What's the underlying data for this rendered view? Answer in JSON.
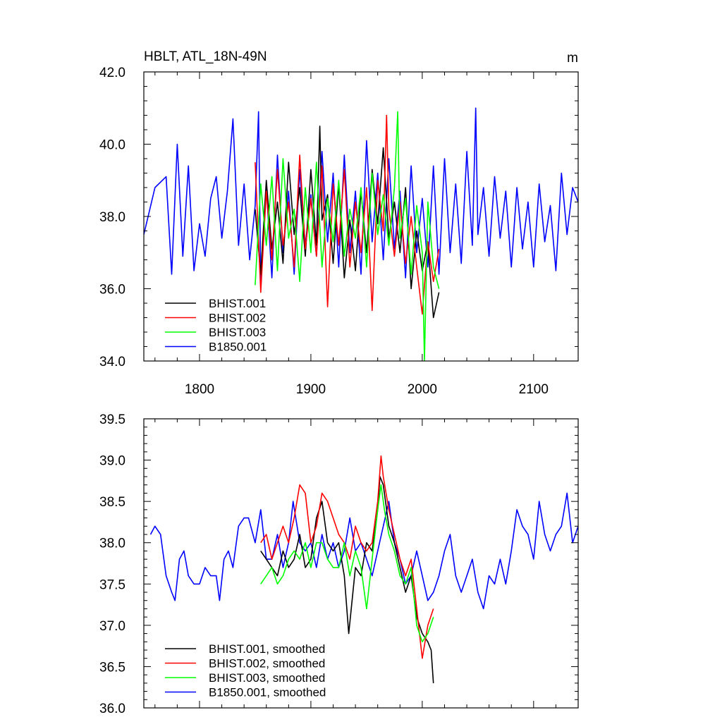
{
  "title_left": "HBLT, ATL_18N-49N",
  "title_right": "m",
  "colors": {
    "BHIST.001": "#000000",
    "BHIST.002": "#ff0000",
    "BHIST.003": "#00ff00",
    "B1850.001": "#0000ff"
  },
  "chart_data": [
    {
      "type": "line",
      "title": "HBLT, ATL_18N-49N",
      "units_label": "m",
      "xlim": [
        1750,
        2140
      ],
      "ylim": [
        34.0,
        42.0
      ],
      "x_ticks": [
        1800,
        1900,
        2000,
        2100
      ],
      "x_tick_labels": [
        "1800",
        "1900",
        "2000",
        "2100"
      ],
      "y_ticks": [
        34.0,
        36.0,
        38.0,
        40.0,
        42.0
      ],
      "y_tick_labels": [
        "34.0",
        "36.0",
        "38.0",
        "40.0",
        "42.0"
      ],
      "grid": false,
      "legend_position": "bottom-left",
      "legend": [
        "BHIST.001",
        "BHIST.002",
        "BHIST.003",
        "B1850.001"
      ],
      "series": [
        {
          "name": "B1850.001",
          "color": "#0000ff",
          "x": [
            1750,
            1760,
            1770,
            1775,
            1780,
            1785,
            1790,
            1795,
            1800,
            1805,
            1810,
            1815,
            1820,
            1825,
            1830,
            1835,
            1840,
            1845,
            1850,
            1853,
            1855,
            1860,
            1865,
            1870,
            1875,
            1880,
            1885,
            1890,
            1895,
            1900,
            1905,
            1910,
            1915,
            1920,
            1925,
            1930,
            1935,
            1940,
            1945,
            1950,
            1955,
            1960,
            1965,
            1970,
            1975,
            1980,
            1985,
            1990,
            1995,
            2000,
            2005,
            2010,
            2015,
            2020,
            2025,
            2030,
            2035,
            2040,
            2045,
            2048,
            2050,
            2055,
            2060,
            2065,
            2070,
            2075,
            2080,
            2085,
            2090,
            2095,
            2100,
            2105,
            2110,
            2115,
            2120,
            2125,
            2130,
            2135,
            2140
          ],
          "values": [
            37.5,
            38.8,
            39.1,
            36.4,
            40.0,
            36.9,
            39.4,
            36.5,
            37.8,
            36.9,
            38.5,
            39.1,
            37.4,
            38.7,
            40.7,
            37.2,
            38.9,
            36.8,
            38.3,
            40.9,
            36.2,
            38.8,
            36.3,
            39.7,
            37.0,
            38.7,
            36.4,
            39.3,
            37.2,
            38.6,
            36.9,
            39.8,
            37.3,
            39.2,
            36.6,
            39.7,
            37.0,
            38.7,
            36.4,
            40.1,
            37.3,
            39.2,
            36.8,
            39.6,
            37.1,
            38.7,
            36.3,
            39.4,
            37.0,
            38.5,
            36.6,
            39.4,
            36.4,
            39.6,
            37.0,
            38.9,
            36.7,
            39.8,
            37.2,
            41.0,
            37.5,
            38.8,
            36.9,
            39.1,
            37.4,
            38.7,
            36.6,
            38.8,
            37.1,
            38.4,
            36.6,
            38.9,
            37.3,
            38.3,
            36.5,
            39.2,
            37.5,
            38.8,
            38.4
          ]
        },
        {
          "name": "BHIST.001",
          "color": "#000000",
          "x": [
            1850,
            1855,
            1860,
            1865,
            1870,
            1875,
            1880,
            1885,
            1890,
            1895,
            1900,
            1905,
            1908,
            1910,
            1915,
            1920,
            1925,
            1930,
            1935,
            1940,
            1945,
            1950,
            1955,
            1960,
            1965,
            1970,
            1975,
            1980,
            1985,
            1990,
            1995,
            2000,
            2005,
            2010,
            2015
          ],
          "values": [
            38.2,
            36.4,
            39.0,
            37.1,
            38.4,
            36.7,
            39.5,
            37.5,
            38.8,
            36.9,
            39.3,
            37.2,
            40.5,
            37.9,
            38.6,
            36.7,
            38.9,
            36.3,
            37.9,
            36.5,
            38.7,
            37.0,
            39.3,
            37.8,
            39.9,
            37.4,
            38.4,
            37.0,
            38.8,
            36.0,
            37.6,
            36.5,
            37.3,
            35.2,
            35.9
          ]
        },
        {
          "name": "BHIST.002",
          "color": "#ff0000",
          "x": [
            1850,
            1855,
            1860,
            1865,
            1870,
            1875,
            1880,
            1885,
            1890,
            1895,
            1900,
            1905,
            1910,
            1915,
            1920,
            1925,
            1930,
            1935,
            1940,
            1945,
            1950,
            1955,
            1960,
            1965,
            1968,
            1970,
            1975,
            1980,
            1985,
            1990,
            1995,
            2000,
            2005,
            2010,
            2015
          ],
          "values": [
            39.5,
            35.9,
            38.7,
            36.8,
            39.3,
            37.2,
            38.4,
            36.6,
            39.7,
            37.1,
            38.5,
            36.9,
            39.4,
            35.5,
            38.9,
            37.2,
            39.3,
            36.6,
            38.4,
            37.0,
            38.8,
            35.4,
            39.0,
            37.6,
            40.8,
            38.2,
            36.9,
            38.4,
            36.7,
            38.0,
            36.6,
            35.3,
            37.3,
            36.2,
            37.1
          ]
        },
        {
          "name": "BHIST.003",
          "color": "#00ff00",
          "x": [
            1850,
            1855,
            1860,
            1865,
            1870,
            1875,
            1880,
            1885,
            1890,
            1895,
            1900,
            1905,
            1910,
            1915,
            1920,
            1925,
            1930,
            1935,
            1940,
            1945,
            1950,
            1955,
            1960,
            1965,
            1970,
            1975,
            1978,
            1980,
            1985,
            1990,
            1995,
            2000,
            2002,
            2005,
            2010,
            2015
          ],
          "values": [
            36.1,
            38.9,
            37.2,
            39.1,
            36.5,
            39.6,
            37.4,
            38.2,
            36.2,
            38.8,
            37.0,
            39.5,
            36.6,
            38.5,
            37.3,
            39.0,
            36.9,
            38.2,
            37.4,
            38.8,
            36.6,
            39.2,
            37.5,
            38.6,
            37.2,
            38.8,
            40.9,
            37.4,
            38.5,
            36.4,
            38.3,
            37.0,
            34.0,
            38.4,
            36.6,
            36.0
          ]
        }
      ]
    },
    {
      "type": "line",
      "xlim": [
        1750,
        2140
      ],
      "ylim": [
        36.0,
        39.5
      ],
      "x_ticks": [
        1800,
        1900,
        2000,
        2100
      ],
      "y_ticks": [
        36.0,
        36.5,
        37.0,
        37.5,
        38.0,
        38.5,
        39.0,
        39.5
      ],
      "y_tick_labels": [
        "36.0",
        "36.5",
        "37.0",
        "37.5",
        "38.0",
        "38.5",
        "39.0",
        "39.5"
      ],
      "grid": false,
      "legend_position": "bottom-left",
      "legend": [
        "BHIST.001, smoothed",
        "BHIST.002, smoothed",
        "BHIST.003, smoothed",
        "B1850.001, smoothed"
      ],
      "series": [
        {
          "name": "B1850.001, smoothed",
          "color": "#0000ff",
          "x": [
            1756,
            1760,
            1765,
            1770,
            1775,
            1778,
            1782,
            1786,
            1790,
            1795,
            1800,
            1805,
            1810,
            1815,
            1818,
            1822,
            1826,
            1830,
            1835,
            1840,
            1844,
            1850,
            1855,
            1860,
            1865,
            1870,
            1875,
            1880,
            1884,
            1890,
            1895,
            1900,
            1905,
            1910,
            1915,
            1920,
            1925,
            1930,
            1935,
            1940,
            1945,
            1950,
            1955,
            1960,
            1965,
            1970,
            1975,
            1980,
            1985,
            1990,
            1995,
            2000,
            2005,
            2010,
            2015,
            2020,
            2025,
            2030,
            2035,
            2040,
            2045,
            2050,
            2055,
            2060,
            2065,
            2070,
            2075,
            2080,
            2085,
            2090,
            2095,
            2100,
            2105,
            2110,
            2115,
            2120,
            2125,
            2130,
            2135,
            2140
          ],
          "values": [
            38.1,
            38.2,
            38.1,
            37.6,
            37.4,
            37.3,
            37.8,
            37.9,
            37.6,
            37.5,
            37.5,
            37.7,
            37.6,
            37.6,
            37.3,
            37.8,
            37.9,
            37.7,
            38.2,
            38.3,
            38.3,
            38.0,
            38.4,
            37.8,
            37.8,
            38.1,
            37.7,
            38.0,
            38.5,
            38.0,
            37.9,
            38.0,
            37.7,
            38.1,
            37.8,
            38.0,
            37.7,
            37.9,
            38.3,
            37.9,
            38.0,
            37.8,
            37.6,
            37.9,
            38.2,
            38.5,
            38.0,
            37.8,
            37.5,
            37.6,
            37.9,
            37.6,
            37.3,
            37.4,
            37.6,
            37.9,
            38.1,
            37.6,
            37.4,
            37.6,
            37.8,
            37.4,
            37.2,
            37.6,
            37.5,
            37.8,
            37.5,
            37.9,
            38.4,
            38.2,
            38.1,
            37.8,
            38.5,
            38.1,
            37.9,
            38.1,
            38.2,
            38.6,
            38.0,
            38.2
          ]
        },
        {
          "name": "BHIST.001, smoothed",
          "color": "#000000",
          "x": [
            1855,
            1860,
            1865,
            1870,
            1875,
            1880,
            1885,
            1890,
            1895,
            1900,
            1905,
            1910,
            1915,
            1920,
            1925,
            1930,
            1934,
            1940,
            1945,
            1950,
            1955,
            1960,
            1962,
            1965,
            1970,
            1975,
            1980,
            1985,
            1990,
            1995,
            2000,
            2005,
            2008,
            2010
          ],
          "values": [
            37.9,
            37.8,
            37.7,
            37.6,
            37.9,
            37.7,
            37.8,
            38.1,
            37.7,
            37.8,
            38.3,
            38.5,
            38.0,
            37.9,
            38.0,
            37.6,
            36.9,
            37.7,
            37.6,
            38.0,
            37.9,
            38.4,
            38.8,
            38.7,
            38.2,
            38.0,
            37.7,
            37.4,
            37.6,
            37.1,
            36.9,
            36.8,
            36.7,
            36.3
          ]
        },
        {
          "name": "BHIST.002, smoothed",
          "color": "#ff0000",
          "x": [
            1855,
            1860,
            1865,
            1870,
            1875,
            1880,
            1885,
            1890,
            1895,
            1900,
            1905,
            1910,
            1915,
            1920,
            1925,
            1930,
            1935,
            1940,
            1945,
            1950,
            1955,
            1960,
            1963,
            1965,
            1970,
            1975,
            1980,
            1985,
            1990,
            1995,
            2000,
            2005,
            2010
          ],
          "values": [
            38.0,
            38.1,
            37.8,
            38.0,
            38.2,
            38.0,
            38.3,
            38.7,
            38.6,
            38.0,
            38.2,
            38.6,
            38.5,
            38.3,
            38.1,
            38.0,
            37.8,
            38.2,
            38.0,
            37.9,
            38.0,
            38.5,
            39.05,
            38.8,
            38.4,
            38.1,
            37.8,
            37.6,
            37.8,
            37.2,
            36.6,
            37.0,
            37.2
          ]
        },
        {
          "name": "BHIST.003, smoothed",
          "color": "#00ff00",
          "x": [
            1855,
            1860,
            1865,
            1870,
            1875,
            1880,
            1885,
            1890,
            1895,
            1900,
            1905,
            1910,
            1915,
            1920,
            1925,
            1930,
            1935,
            1940,
            1945,
            1950,
            1955,
            1960,
            1963,
            1966,
            1970,
            1975,
            1980,
            1985,
            1990,
            1995,
            2000,
            2005,
            2010
          ],
          "values": [
            37.5,
            37.6,
            37.7,
            37.5,
            37.6,
            37.8,
            37.9,
            37.8,
            38.0,
            37.7,
            38.0,
            38.0,
            37.8,
            37.7,
            37.7,
            38.0,
            37.6,
            37.9,
            37.7,
            37.2,
            37.8,
            38.4,
            38.7,
            38.4,
            38.1,
            37.9,
            37.6,
            37.5,
            37.7,
            37.0,
            36.8,
            36.9,
            37.1
          ]
        }
      ]
    }
  ]
}
